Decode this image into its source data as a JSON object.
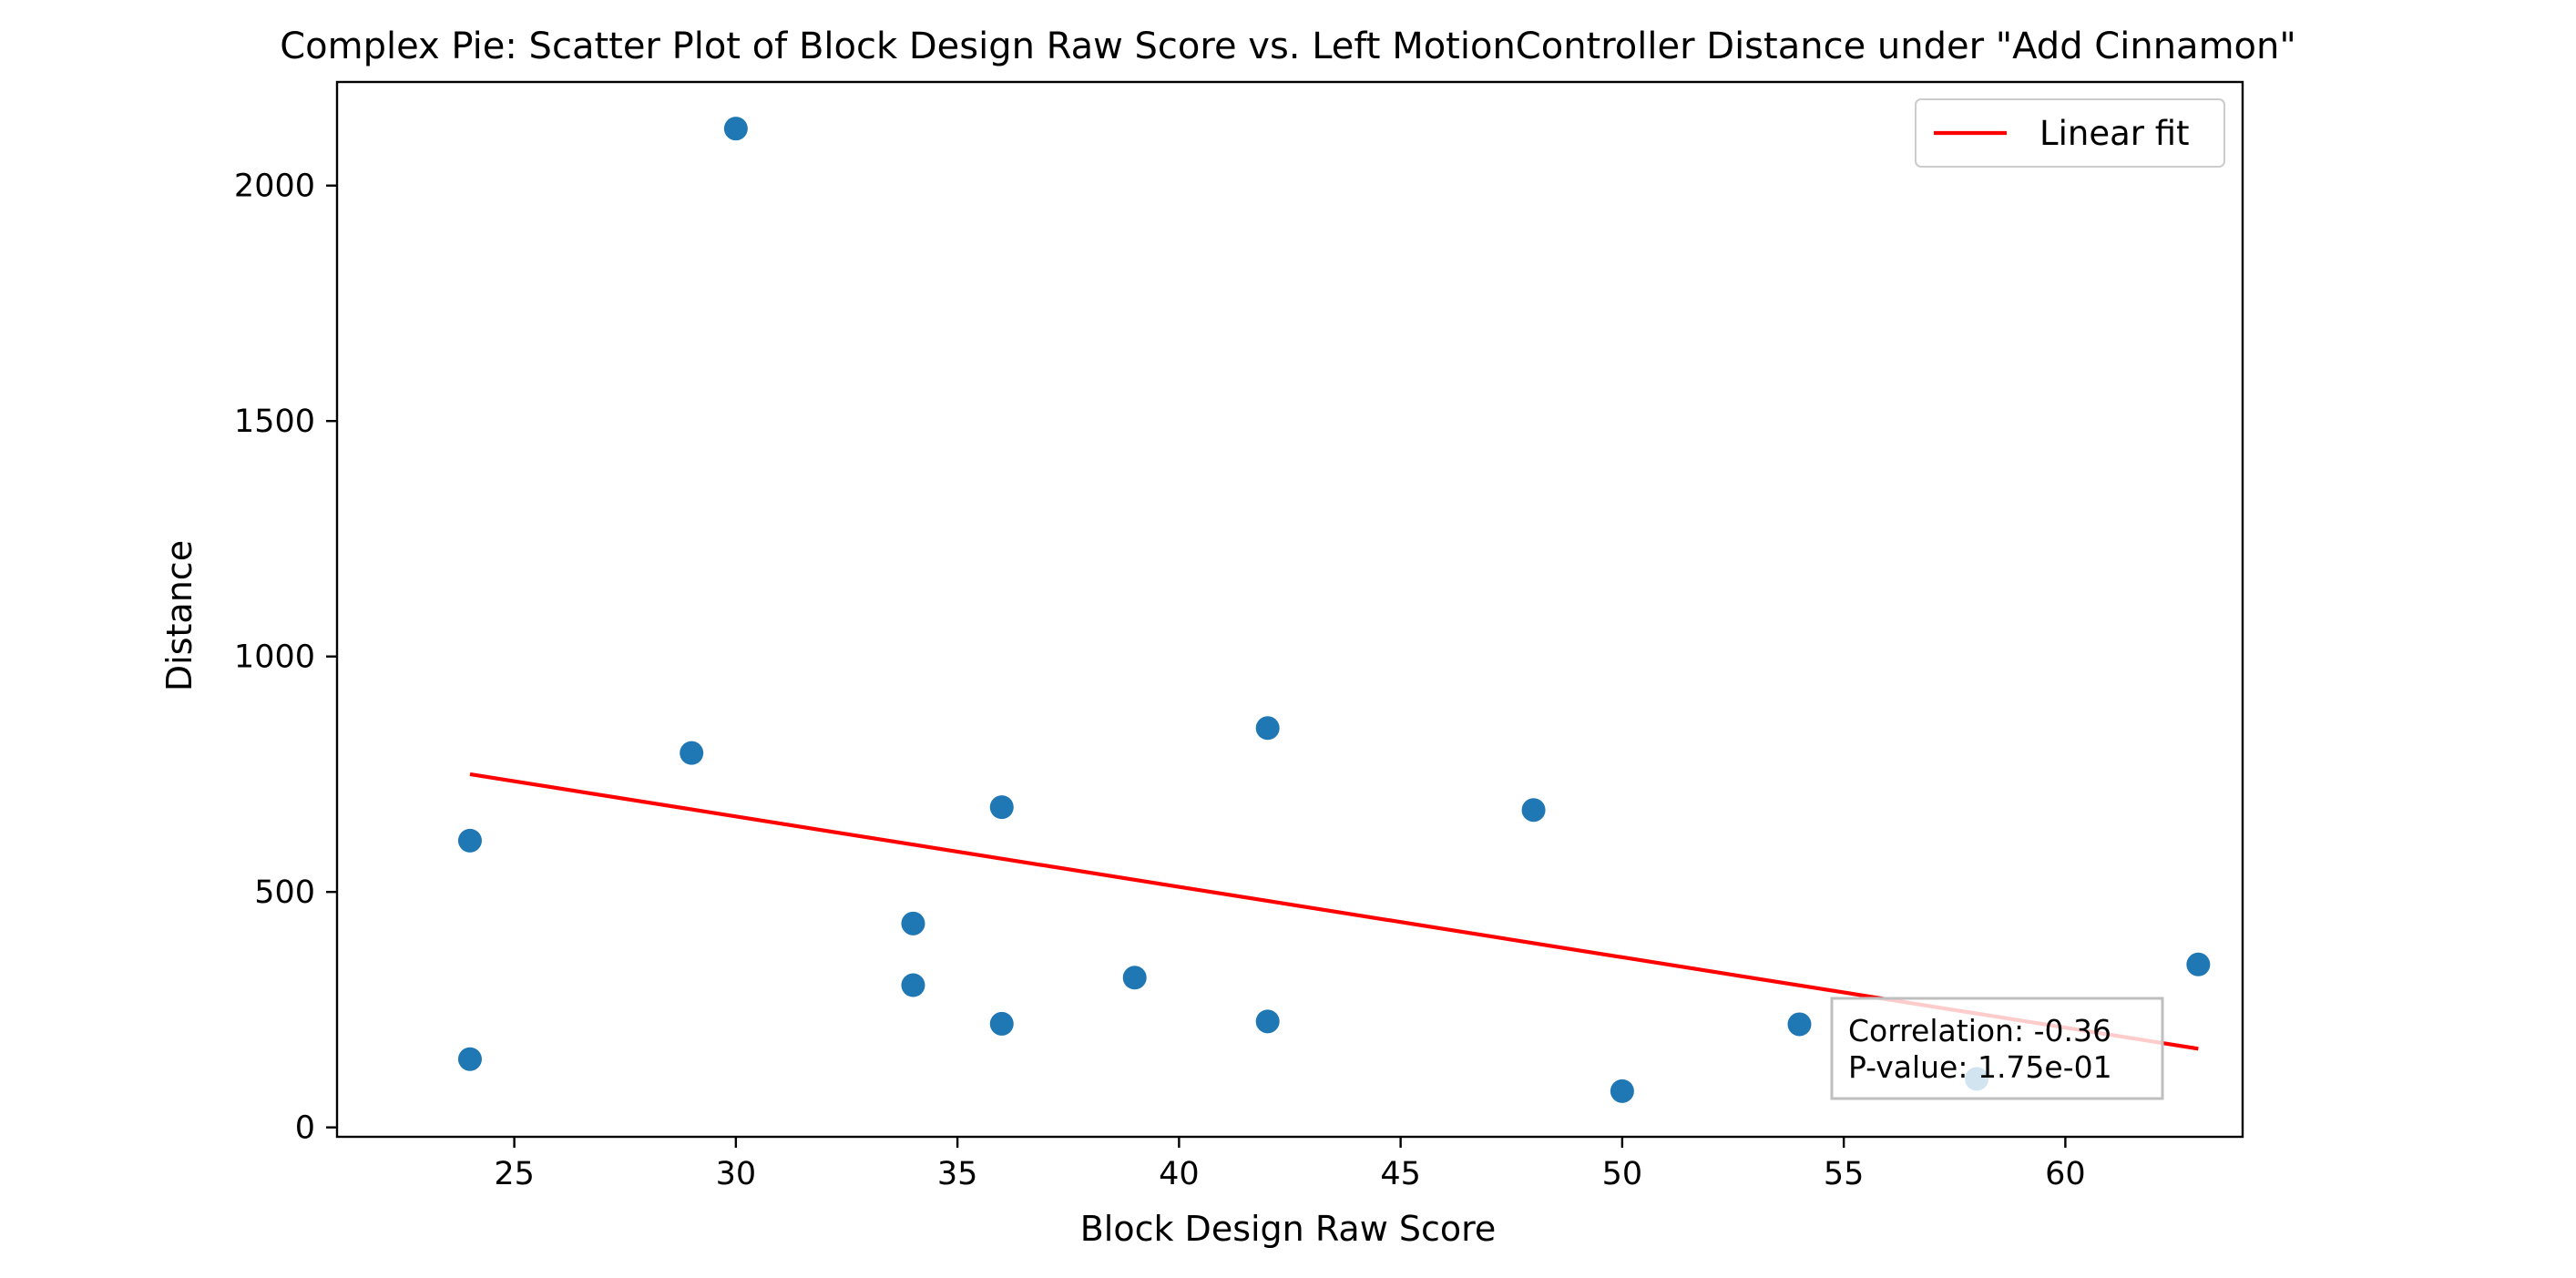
{
  "chart_data": {
    "type": "scatter",
    "title": "Complex Pie: Scatter Plot of Block Design Raw Score vs. Left MotionController Distance under \"Add Cinnamon\"",
    "xlabel": "Block Design Raw Score",
    "ylabel": "Distance",
    "xlim": [
      21,
      64
    ],
    "ylim": [
      -20,
      2220
    ],
    "xticks": [
      25,
      30,
      35,
      40,
      45,
      50,
      55,
      60
    ],
    "yticks": [
      0,
      500,
      1000,
      1500,
      2000
    ],
    "grid": false,
    "legend_position": "top-right",
    "points": [
      {
        "x": 24,
        "y": 609
      },
      {
        "x": 24,
        "y": 145
      },
      {
        "x": 29,
        "y": 795
      },
      {
        "x": 30,
        "y": 2121
      },
      {
        "x": 34,
        "y": 433
      },
      {
        "x": 34,
        "y": 302
      },
      {
        "x": 36,
        "y": 680
      },
      {
        "x": 36,
        "y": 220
      },
      {
        "x": 39,
        "y": 318
      },
      {
        "x": 42,
        "y": 848
      },
      {
        "x": 42,
        "y": 225
      },
      {
        "x": 48,
        "y": 674
      },
      {
        "x": 50,
        "y": 77
      },
      {
        "x": 54,
        "y": 219
      },
      {
        "x": 58,
        "y": 103
      },
      {
        "x": 63,
        "y": 346
      }
    ],
    "fit_line": {
      "name": "Linear fit",
      "x": [
        24,
        63
      ],
      "y": [
        750,
        167
      ]
    },
    "annotation": [
      "Correlation: -0.36",
      "P-value: 1.75e-01"
    ],
    "colors": {
      "points": "#1f77b4",
      "fit_line": "#ff0000",
      "axes": "#000000",
      "annotation_border": "#bfbfbf"
    }
  }
}
